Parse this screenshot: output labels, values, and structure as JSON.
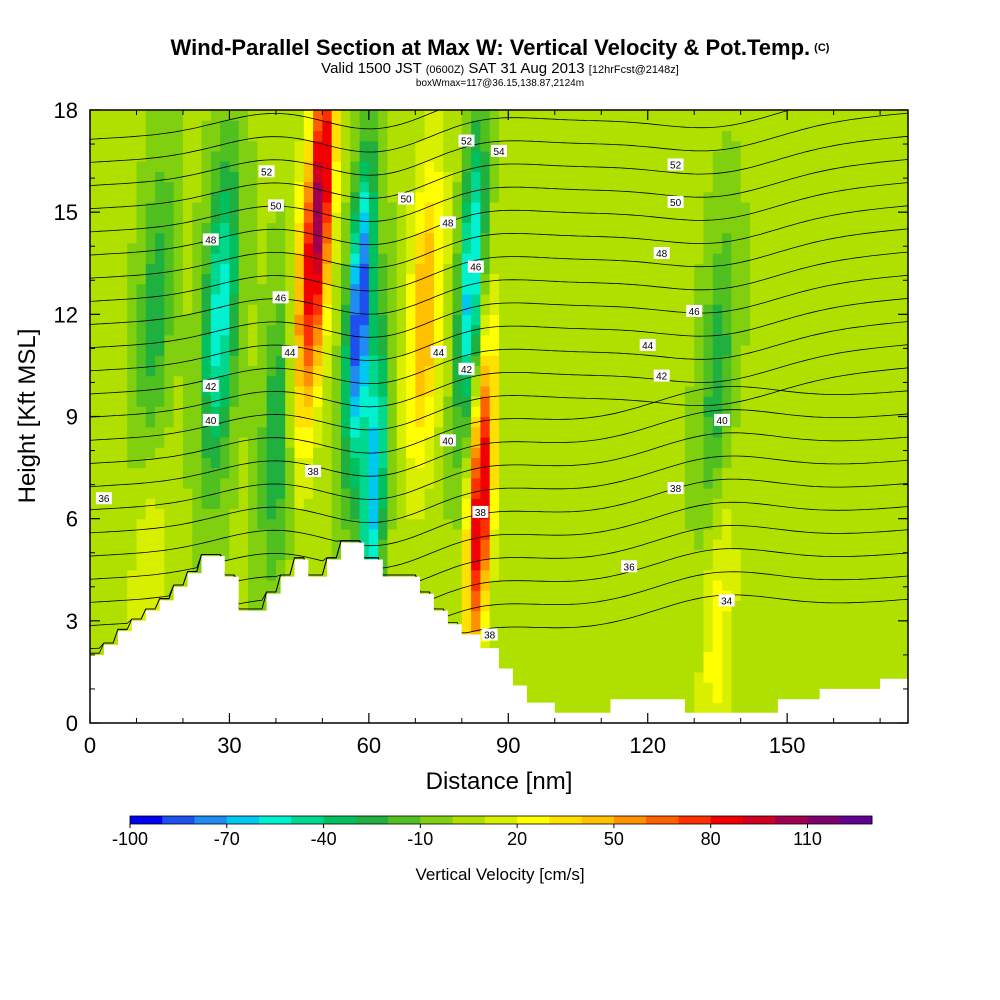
{
  "title": {
    "main": "Wind-Parallel Section at Max W: Vertical Velocity & Pot.Temp.",
    "main_mark": "(C)",
    "valid_prefix": "Valid 1500 JST",
    "valid_utc": "(0600Z)",
    "valid_date": "SAT 31 Aug 2013",
    "valid_fcst": "[12hrFcst@2148z]",
    "box": "boxWmax=117@36.15,138.87,2124m"
  },
  "chart_data": {
    "type": "heatmap",
    "xlabel": "Distance [nm]",
    "ylabel": "Height [Kft MSL]",
    "xlim": [
      0,
      176
    ],
    "ylim": [
      0,
      18
    ],
    "x_ticks": [
      "0",
      "30",
      "60",
      "90",
      "120",
      "150"
    ],
    "y_ticks": [
      "0",
      "3",
      "6",
      "9",
      "12",
      "15",
      "18"
    ],
    "colorbar": {
      "label": "Vertical Velocity [cm/s]",
      "tick_labels": [
        "-100",
        "-70",
        "-40",
        "-10",
        "20",
        "50",
        "80",
        "110"
      ],
      "levels": [
        -100,
        -90,
        -80,
        -70,
        -60,
        -50,
        -40,
        -30,
        -20,
        -10,
        0,
        10,
        20,
        30,
        40,
        50,
        60,
        70,
        80,
        90,
        100,
        110,
        120
      ],
      "colors": [
        "#0000f0",
        "#1e50f0",
        "#1e8cf0",
        "#00c8f0",
        "#00f0d0",
        "#00d890",
        "#00c060",
        "#20b040",
        "#50c020",
        "#80d010",
        "#b0e000",
        "#d8f000",
        "#ffff00",
        "#ffe000",
        "#ffc000",
        "#ff9000",
        "#ff6000",
        "#ff3000",
        "#f00000",
        "#d00020",
        "#a00050",
        "#800070",
        "#600090"
      ]
    },
    "vertical_velocity_features": [
      {
        "x": 28,
        "center_height": 12,
        "value": -60
      },
      {
        "x": 41,
        "center_height": 9,
        "value": -40
      },
      {
        "x": 46,
        "center_height": 12,
        "value": 60
      },
      {
        "x": 50,
        "center_height": 16,
        "value": 85
      },
      {
        "x": 58,
        "center_height": 12,
        "value": -95
      },
      {
        "x": 61,
        "center_height": 7,
        "value": -70
      },
      {
        "x": 72,
        "center_height": 12,
        "value": 50
      },
      {
        "x": 82,
        "center_height": 13,
        "value": -70
      },
      {
        "x": 84,
        "center_height": 6.5,
        "value": 95
      },
      {
        "x": 14,
        "center_height": 12,
        "value": -30
      },
      {
        "x": 135,
        "center_height": 10,
        "value": -30
      },
      {
        "x": 12,
        "center_height": 4,
        "value": 20
      },
      {
        "x": 135,
        "center_height": 3,
        "value": 25
      }
    ],
    "potential_temperature_contours": {
      "levels": [
        34,
        36,
        38,
        40,
        42,
        44,
        46,
        48,
        50,
        52,
        54
      ],
      "labels": [
        {
          "text": "52",
          "x": 38,
          "y": 16.2
        },
        {
          "text": "50",
          "x": 40,
          "y": 15.2
        },
        {
          "text": "48",
          "x": 26,
          "y": 14.2
        },
        {
          "text": "46",
          "x": 41,
          "y": 12.5
        },
        {
          "text": "44",
          "x": 43,
          "y": 10.9
        },
        {
          "text": "42",
          "x": 26,
          "y": 9.9
        },
        {
          "text": "40",
          "x": 26,
          "y": 8.9
        },
        {
          "text": "38",
          "x": 48,
          "y": 7.4
        },
        {
          "text": "36",
          "x": 3,
          "y": 6.6
        },
        {
          "text": "52",
          "x": 81,
          "y": 17.1
        },
        {
          "text": "54",
          "x": 88,
          "y": 16.8
        },
        {
          "text": "50",
          "x": 68,
          "y": 15.4
        },
        {
          "text": "48",
          "x": 77,
          "y": 14.7
        },
        {
          "text": "46",
          "x": 83,
          "y": 13.4
        },
        {
          "text": "44",
          "x": 75,
          "y": 10.9
        },
        {
          "text": "42",
          "x": 81,
          "y": 10.4
        },
        {
          "text": "40",
          "x": 77,
          "y": 8.3
        },
        {
          "text": "38",
          "x": 84,
          "y": 6.2
        },
        {
          "text": "38",
          "x": 86,
          "y": 2.6
        },
        {
          "text": "52",
          "x": 126,
          "y": 16.4
        },
        {
          "text": "50",
          "x": 126,
          "y": 15.3
        },
        {
          "text": "48",
          "x": 123,
          "y": 13.8
        },
        {
          "text": "46",
          "x": 130,
          "y": 12.1
        },
        {
          "text": "44",
          "x": 120,
          "y": 11.1
        },
        {
          "text": "42",
          "x": 123,
          "y": 10.2
        },
        {
          "text": "40",
          "x": 136,
          "y": 8.9
        },
        {
          "text": "38",
          "x": 126,
          "y": 6.9
        },
        {
          "text": "36",
          "x": 116,
          "y": 4.6
        },
        {
          "text": "34",
          "x": 137,
          "y": 3.6
        }
      ]
    },
    "terrain": [
      [
        0,
        2.0
      ],
      [
        3,
        2.0
      ],
      [
        3,
        2.3
      ],
      [
        6,
        2.3
      ],
      [
        6,
        2.7
      ],
      [
        9,
        2.7
      ],
      [
        9,
        3.0
      ],
      [
        12,
        3.0
      ],
      [
        12,
        3.3
      ],
      [
        15,
        3.3
      ],
      [
        15,
        3.6
      ],
      [
        18,
        3.6
      ],
      [
        18,
        4.0
      ],
      [
        21,
        4.0
      ],
      [
        21,
        4.4
      ],
      [
        24,
        4.4
      ],
      [
        24,
        4.9
      ],
      [
        29,
        4.9
      ],
      [
        29,
        4.3
      ],
      [
        32,
        4.3
      ],
      [
        32,
        3.3
      ],
      [
        38,
        3.3
      ],
      [
        38,
        3.8
      ],
      [
        41,
        3.8
      ],
      [
        41,
        4.3
      ],
      [
        44,
        4.3
      ],
      [
        44,
        4.8
      ],
      [
        47,
        4.8
      ],
      [
        47,
        4.3
      ],
      [
        51,
        4.3
      ],
      [
        51,
        4.8
      ],
      [
        54,
        4.8
      ],
      [
        54,
        5.3
      ],
      [
        59,
        5.3
      ],
      [
        59,
        4.8
      ],
      [
        63,
        4.8
      ],
      [
        63,
        4.3
      ],
      [
        71,
        4.3
      ],
      [
        71,
        3.8
      ],
      [
        74,
        3.8
      ],
      [
        74,
        3.3
      ],
      [
        77,
        3.3
      ],
      [
        77,
        2.9
      ],
      [
        80,
        2.9
      ],
      [
        80,
        2.6
      ],
      [
        84,
        2.6
      ],
      [
        84,
        2.2
      ],
      [
        88,
        2.2
      ],
      [
        88,
        1.6
      ],
      [
        91,
        1.6
      ],
      [
        91,
        1.1
      ],
      [
        94,
        1.1
      ],
      [
        94,
        0.6
      ],
      [
        100,
        0.6
      ],
      [
        100,
        0.3
      ],
      [
        112,
        0.3
      ],
      [
        112,
        0.7
      ],
      [
        128,
        0.7
      ],
      [
        128,
        0.3
      ],
      [
        148,
        0.3
      ],
      [
        148,
        0.7
      ],
      [
        157,
        0.7
      ],
      [
        157,
        1.0
      ],
      [
        170,
        1.0
      ],
      [
        170,
        1.3
      ],
      [
        176,
        1.3
      ]
    ]
  }
}
